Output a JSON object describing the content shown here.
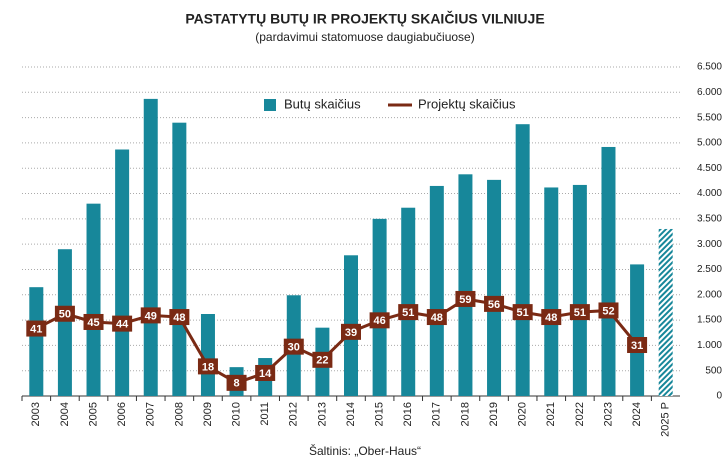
{
  "chart_data": {
    "type": "bar_line",
    "title": "PASTATYTŲ BUTŲ IR PROJEKTŲ SKAIČIUS VILNIUJE",
    "subtitle": "(pardavimui statomuose daugiabučiuose)",
    "source": "Šaltinis: „Ober-Haus“",
    "categories": [
      "2003",
      "2004",
      "2005",
      "2006",
      "2007",
      "2008",
      "2009",
      "2010",
      "2011",
      "2012",
      "2013",
      "2014",
      "2015",
      "2016",
      "2017",
      "2018",
      "2019",
      "2020",
      "2021",
      "2022",
      "2023",
      "2024",
      "2025 P"
    ],
    "series": [
      {
        "name": "Butų skaičius",
        "type": "bar",
        "color": "#17879a",
        "values": [
          2150,
          2900,
          3800,
          4870,
          5870,
          5400,
          1620,
          570,
          750,
          1990,
          1350,
          2780,
          3500,
          3720,
          4150,
          4380,
          4270,
          5370,
          4120,
          4170,
          4920,
          2600,
          3300
        ],
        "hatch": [
          false,
          false,
          false,
          false,
          false,
          false,
          false,
          false,
          false,
          false,
          false,
          false,
          false,
          false,
          false,
          false,
          false,
          false,
          false,
          false,
          false,
          false,
          true
        ]
      },
      {
        "name": "Projektų skaičius",
        "type": "line",
        "axis": "y2",
        "color": "#7a2a14",
        "values": [
          41,
          50,
          45,
          44,
          49,
          48,
          18,
          8,
          14,
          30,
          22,
          39,
          46,
          51,
          48,
          59,
          56,
          51,
          48,
          51,
          52,
          31,
          null
        ]
      }
    ],
    "ylim": [
      0,
      6500
    ],
    "yticks": [
      0,
      500,
      {
        "value": 1000,
        "label": "1.000"
      },
      {
        "value": 1500,
        "label": "1.500"
      },
      {
        "value": 2000,
        "label": "2.000"
      },
      {
        "value": 2500,
        "label": "2.500"
      },
      {
        "value": 3000,
        "label": "3.000"
      },
      {
        "value": 3500,
        "label": "3.500"
      },
      {
        "value": 4000,
        "label": "4.000"
      },
      {
        "value": 4500,
        "label": "4.500"
      },
      {
        "value": 5000,
        "label": "5.000"
      },
      {
        "value": 5500,
        "label": "5.500"
      },
      {
        "value": 6000,
        "label": "6.000"
      },
      {
        "value": 6500,
        "label": "6.500"
      }
    ],
    "y2lim": [
      0,
      200
    ],
    "grid": true,
    "legend": "top"
  }
}
